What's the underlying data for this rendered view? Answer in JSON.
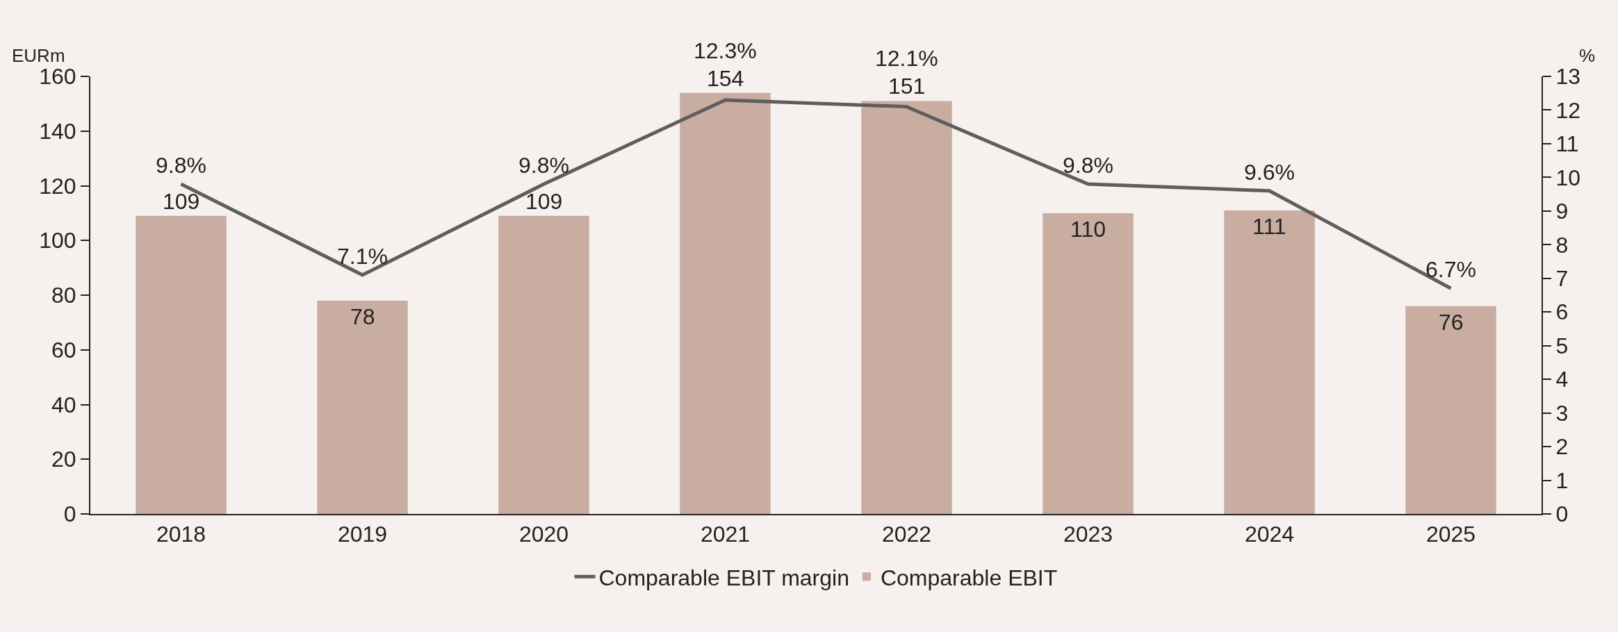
{
  "chart_data": {
    "type": "bar",
    "categories": [
      "2018",
      "2019",
      "2020",
      "2021",
      "2022",
      "2023",
      "2024",
      "2025"
    ],
    "ylabel": "EURm",
    "y2label": "%",
    "series": [
      {
        "name": "Comparable EBIT margin",
        "type": "line",
        "axis": "y2",
        "color": "#5f5e5d",
        "values": [
          9.8,
          7.1,
          9.8,
          12.3,
          12.1,
          9.8,
          9.6,
          6.7
        ],
        "value_labels": [
          "9.8%",
          "7.1%",
          "9.8%",
          "12.3%",
          "12.1%",
          "9.8%",
          "9.6%",
          "6.7%"
        ]
      },
      {
        "name": "Comparable EBIT",
        "color": "#c9ada1",
        "values": [
          109,
          78,
          109,
          154,
          151,
          110,
          111,
          76
        ]
      }
    ],
    "ylim": [
      0,
      160
    ],
    "yticks": [
      0,
      20,
      40,
      60,
      80,
      100,
      120,
      140,
      160
    ],
    "y2lim": [
      0,
      13
    ],
    "y2ticks": [
      0,
      1,
      2,
      3,
      4,
      5,
      6,
      7,
      8,
      9,
      10,
      11,
      12,
      13
    ],
    "data_labels": true,
    "legend": "bottom",
    "grid": false,
    "marker": "none",
    "line_style": "solid"
  }
}
